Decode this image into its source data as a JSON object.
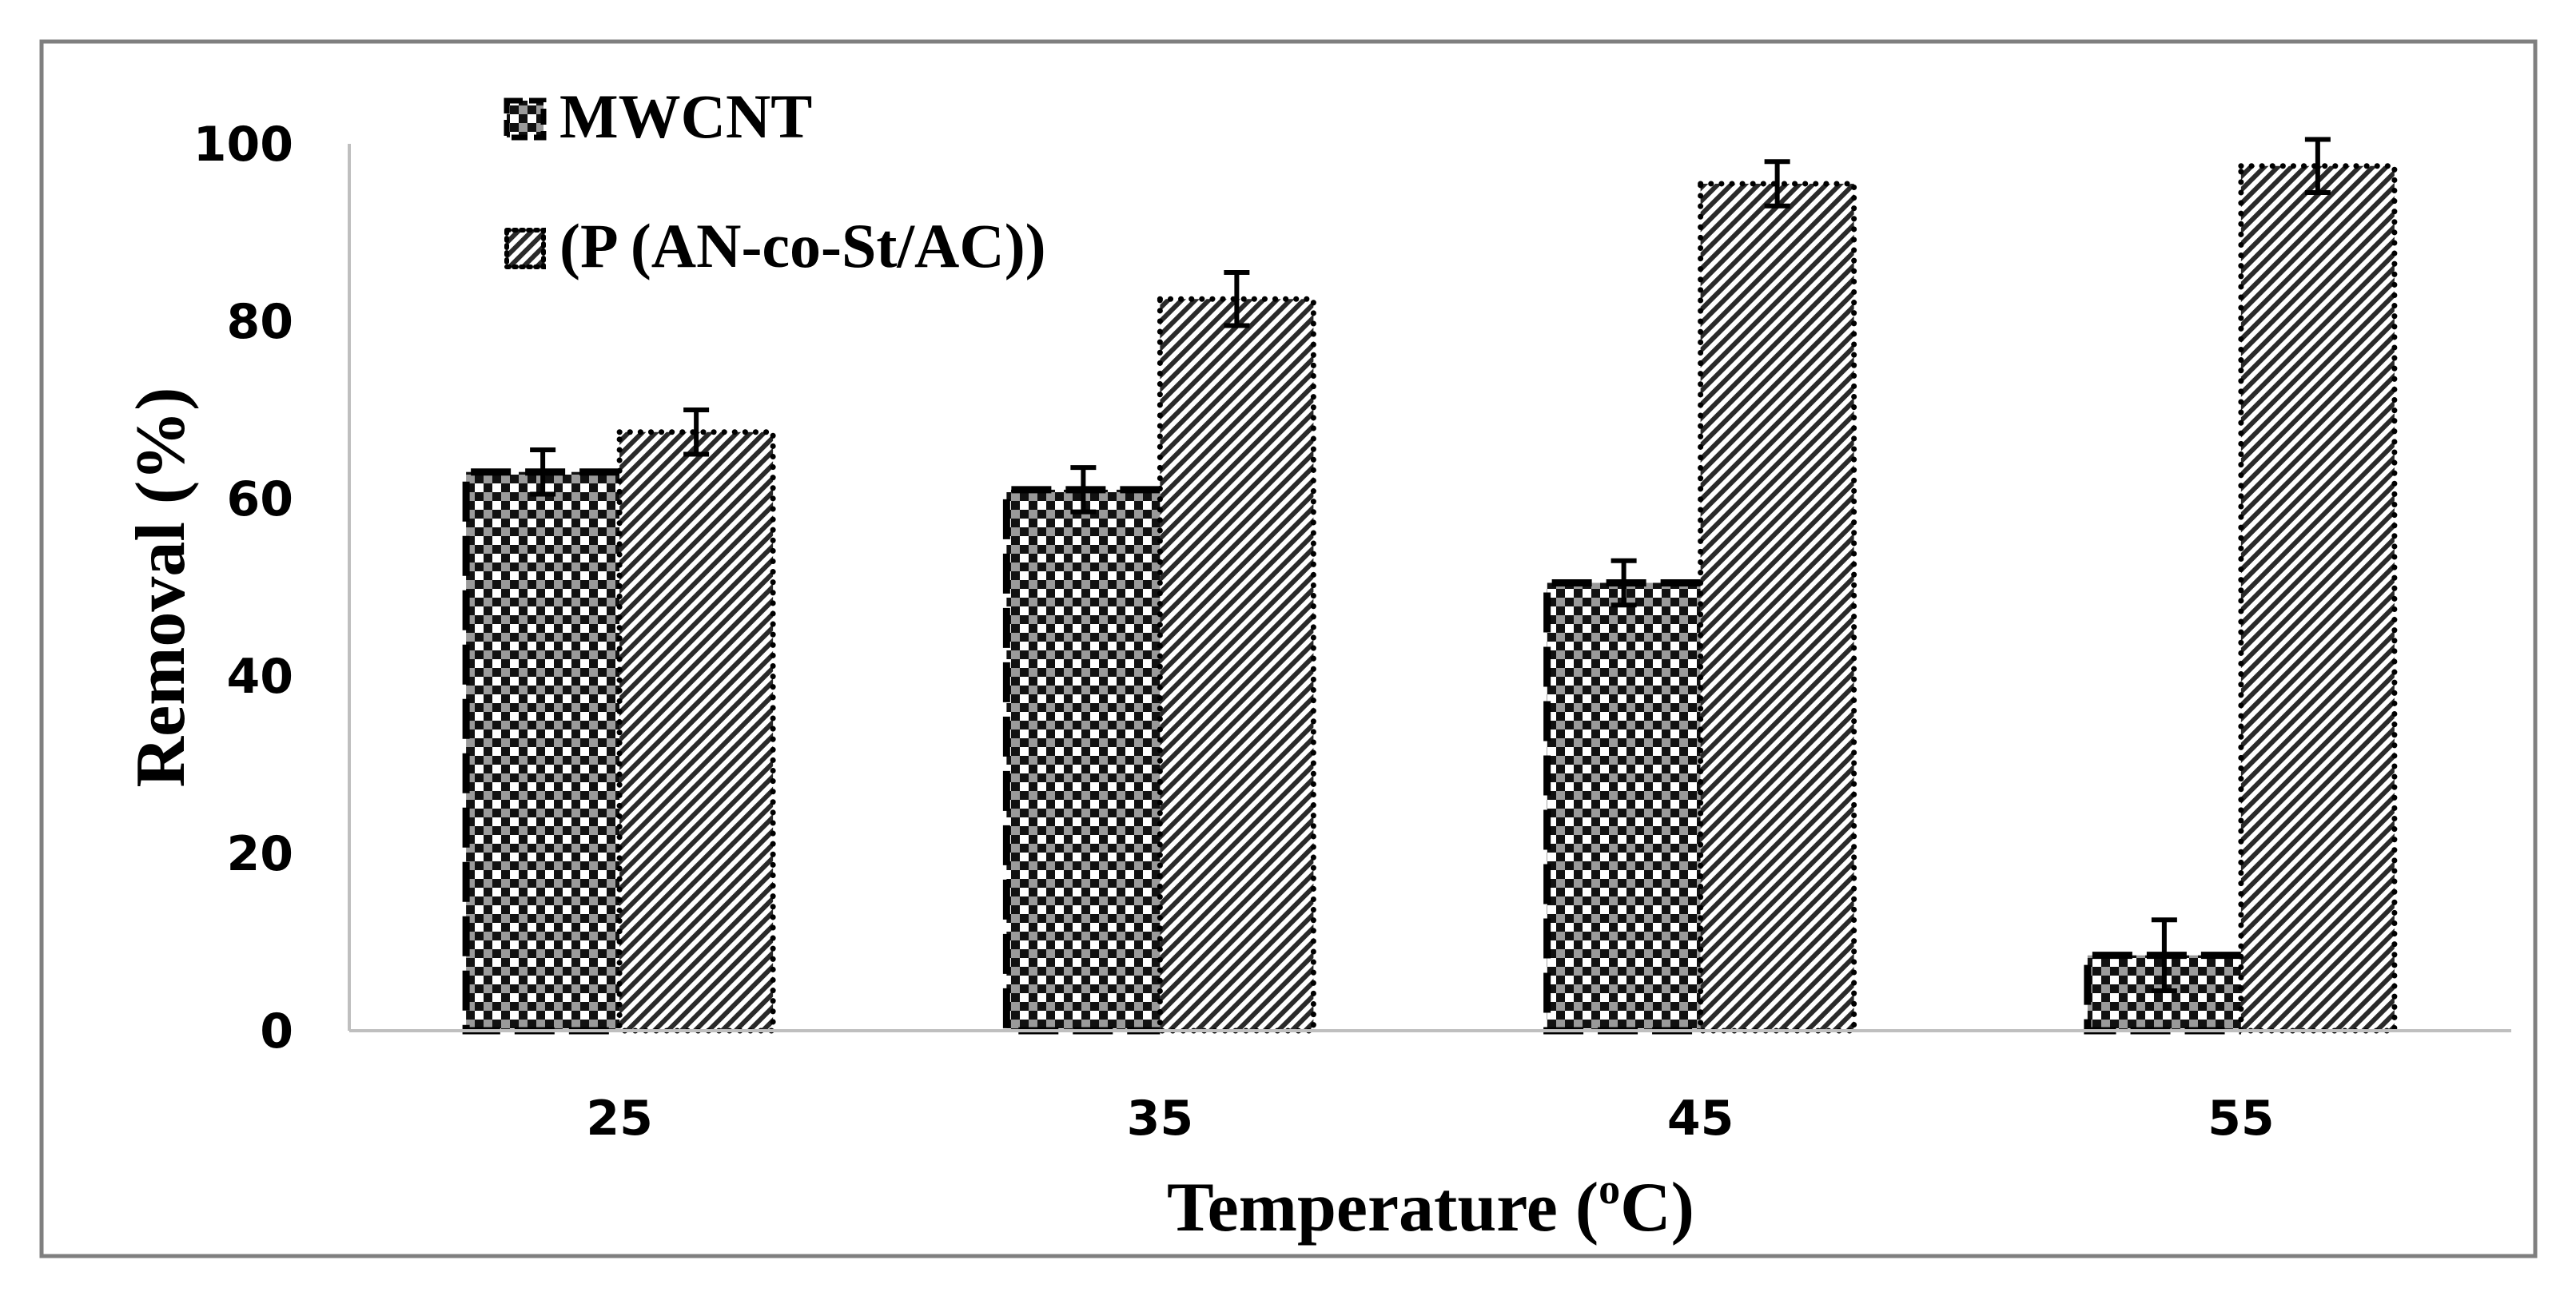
{
  "chart_data": {
    "type": "bar",
    "title": "",
    "xlabel": "Temperature (",
    "xlabel_sup": "o",
    "xlabel_end": "C)",
    "ylabel": "Removal (%)",
    "ylim": [
      0,
      100
    ],
    "yticks": [
      0,
      20,
      40,
      60,
      80,
      100
    ],
    "grid": false,
    "legend_position": "top-left",
    "categories": [
      "25",
      "35",
      "45",
      "55"
    ],
    "series": [
      {
        "name": "MWCNT",
        "values": [
          63,
          61,
          50.5,
          8.5
        ],
        "errors": [
          2.5,
          2.5,
          2.5,
          4
        ],
        "pattern": "checker"
      },
      {
        "name": "(P (AN-co-St/AC))",
        "values": [
          67.5,
          82.5,
          95.5,
          97.5
        ],
        "errors": [
          2.5,
          3,
          2.5,
          3
        ],
        "pattern": "diagonal"
      }
    ],
    "colors": {
      "frame": "#7f7f7f",
      "axis": "#bfbfbf",
      "ink": "#000000",
      "fill": "#ffffff"
    }
  }
}
